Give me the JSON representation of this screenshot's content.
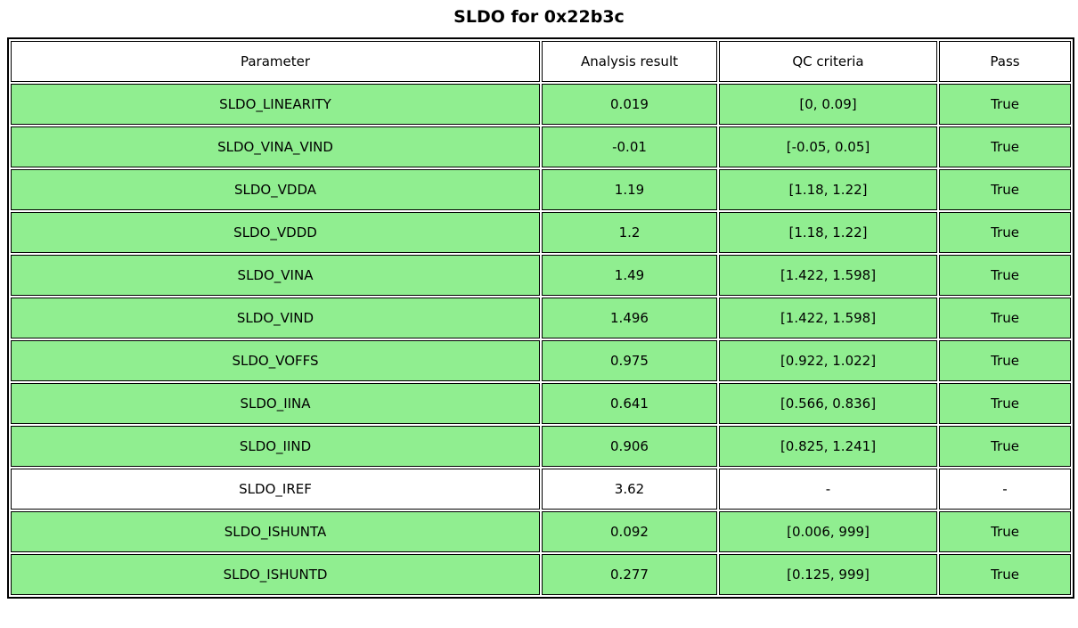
{
  "chart_data": {
    "type": "table",
    "title": "SLDO for 0x22b3c",
    "columns": [
      "Parameter",
      "Analysis result",
      "QC criteria",
      "Pass"
    ],
    "rows": [
      {
        "cells": [
          "SLDO_LINEARITY",
          "0.019",
          "[0, 0.09]",
          "True"
        ],
        "passed": true
      },
      {
        "cells": [
          "SLDO_VINA_VIND",
          "-0.01",
          "[-0.05, 0.05]",
          "True"
        ],
        "passed": true
      },
      {
        "cells": [
          "SLDO_VDDA",
          "1.19",
          "[1.18, 1.22]",
          "True"
        ],
        "passed": true
      },
      {
        "cells": [
          "SLDO_VDDD",
          "1.2",
          "[1.18, 1.22]",
          "True"
        ],
        "passed": true
      },
      {
        "cells": [
          "SLDO_VINA",
          "1.49",
          "[1.422, 1.598]",
          "True"
        ],
        "passed": true
      },
      {
        "cells": [
          "SLDO_VIND",
          "1.496",
          "[1.422, 1.598]",
          "True"
        ],
        "passed": true
      },
      {
        "cells": [
          "SLDO_VOFFS",
          "0.975",
          "[0.922, 1.022]",
          "True"
        ],
        "passed": true
      },
      {
        "cells": [
          "SLDO_IINA",
          "0.641",
          "[0.566, 0.836]",
          "True"
        ],
        "passed": true
      },
      {
        "cells": [
          "SLDO_IIND",
          "0.906",
          "[0.825, 1.241]",
          "True"
        ],
        "passed": true
      },
      {
        "cells": [
          "SLDO_IREF",
          "3.62",
          "-",
          "-"
        ],
        "passed": null
      },
      {
        "cells": [
          "SLDO_ISHUNTA",
          "0.092",
          "[0.006, 999]",
          "True"
        ],
        "passed": true
      },
      {
        "cells": [
          "SLDO_ISHUNTD",
          "0.277",
          "[0.125, 999]",
          "True"
        ],
        "passed": true
      }
    ],
    "layout": {
      "legend": "none",
      "grid": "cell-borders"
    }
  },
  "colors": {
    "pass_row_bg": "#90EE90",
    "neutral_row_bg": "#ffffff",
    "border": "#000000",
    "text": "#000000"
  }
}
